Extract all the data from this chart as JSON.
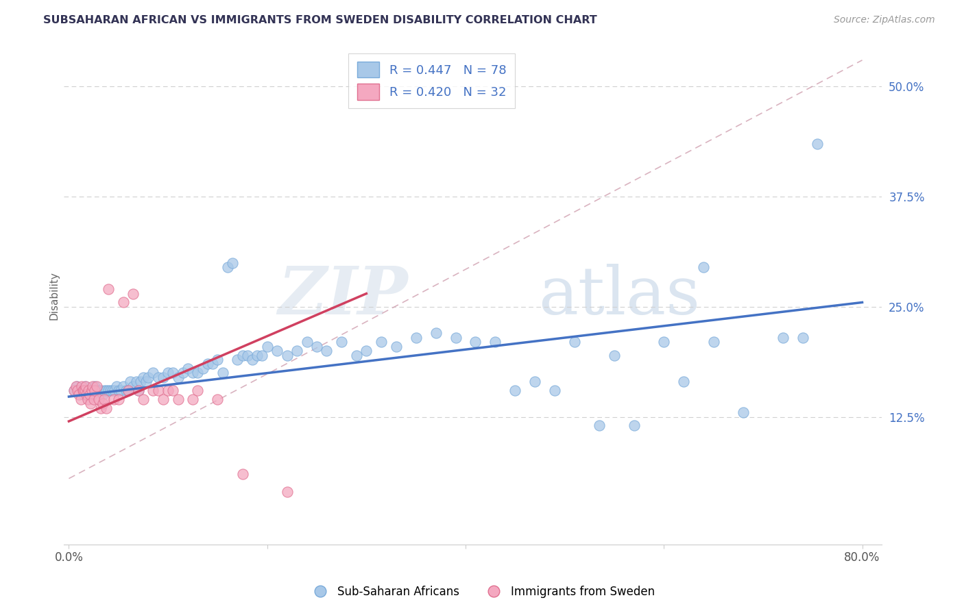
{
  "title": "SUBSAHARAN AFRICAN VS IMMIGRANTS FROM SWEDEN DISABILITY CORRELATION CHART",
  "source": "Source: ZipAtlas.com",
  "ylabel": "Disability",
  "xlim": [
    -0.005,
    0.82
  ],
  "ylim": [
    -0.02,
    0.545
  ],
  "xticks": [
    0.0,
    0.2,
    0.4,
    0.6,
    0.8
  ],
  "xticklabels": [
    "0.0%",
    "",
    "",
    "",
    "80.0%"
  ],
  "ytick_positions": [
    0.125,
    0.25,
    0.375,
    0.5
  ],
  "ytick_labels": [
    "12.5%",
    "25.0%",
    "37.5%",
    "50.0%"
  ],
  "blue_color": "#a8c8e8",
  "pink_color": "#f4a8c0",
  "trendline_blue_color": "#4472c4",
  "trendline_pink_color": "#d04060",
  "trendline_dashed_color": "#d0a0b0",
  "grid_color": "#d0d0d0",
  "blue_scatter": [
    [
      0.005,
      0.155
    ],
    [
      0.008,
      0.16
    ],
    [
      0.01,
      0.155
    ],
    [
      0.012,
      0.155
    ],
    [
      0.014,
      0.155
    ],
    [
      0.015,
      0.15
    ],
    [
      0.016,
      0.16
    ],
    [
      0.018,
      0.155
    ],
    [
      0.02,
      0.155
    ],
    [
      0.022,
      0.155
    ],
    [
      0.024,
      0.15
    ],
    [
      0.025,
      0.155
    ],
    [
      0.026,
      0.16
    ],
    [
      0.028,
      0.155
    ],
    [
      0.03,
      0.155
    ],
    [
      0.032,
      0.155
    ],
    [
      0.034,
      0.15
    ],
    [
      0.036,
      0.155
    ],
    [
      0.038,
      0.155
    ],
    [
      0.04,
      0.155
    ],
    [
      0.042,
      0.155
    ],
    [
      0.044,
      0.155
    ],
    [
      0.046,
      0.155
    ],
    [
      0.048,
      0.16
    ],
    [
      0.05,
      0.155
    ],
    [
      0.052,
      0.155
    ],
    [
      0.055,
      0.16
    ],
    [
      0.058,
      0.155
    ],
    [
      0.06,
      0.155
    ],
    [
      0.062,
      0.165
    ],
    [
      0.065,
      0.16
    ],
    [
      0.068,
      0.165
    ],
    [
      0.07,
      0.155
    ],
    [
      0.072,
      0.165
    ],
    [
      0.075,
      0.17
    ],
    [
      0.078,
      0.165
    ],
    [
      0.08,
      0.17
    ],
    [
      0.085,
      0.175
    ],
    [
      0.09,
      0.17
    ],
    [
      0.095,
      0.17
    ],
    [
      0.1,
      0.175
    ],
    [
      0.105,
      0.175
    ],
    [
      0.11,
      0.17
    ],
    [
      0.115,
      0.175
    ],
    [
      0.12,
      0.18
    ],
    [
      0.125,
      0.175
    ],
    [
      0.13,
      0.175
    ],
    [
      0.135,
      0.18
    ],
    [
      0.14,
      0.185
    ],
    [
      0.145,
      0.185
    ],
    [
      0.15,
      0.19
    ],
    [
      0.155,
      0.175
    ],
    [
      0.16,
      0.295
    ],
    [
      0.165,
      0.3
    ],
    [
      0.17,
      0.19
    ],
    [
      0.175,
      0.195
    ],
    [
      0.18,
      0.195
    ],
    [
      0.185,
      0.19
    ],
    [
      0.19,
      0.195
    ],
    [
      0.195,
      0.195
    ],
    [
      0.2,
      0.205
    ],
    [
      0.21,
      0.2
    ],
    [
      0.22,
      0.195
    ],
    [
      0.23,
      0.2
    ],
    [
      0.24,
      0.21
    ],
    [
      0.25,
      0.205
    ],
    [
      0.26,
      0.2
    ],
    [
      0.275,
      0.21
    ],
    [
      0.29,
      0.195
    ],
    [
      0.3,
      0.2
    ],
    [
      0.315,
      0.21
    ],
    [
      0.33,
      0.205
    ],
    [
      0.35,
      0.215
    ],
    [
      0.37,
      0.22
    ],
    [
      0.39,
      0.215
    ],
    [
      0.41,
      0.21
    ],
    [
      0.43,
      0.21
    ],
    [
      0.45,
      0.155
    ],
    [
      0.47,
      0.165
    ],
    [
      0.49,
      0.155
    ],
    [
      0.51,
      0.21
    ],
    [
      0.535,
      0.115
    ],
    [
      0.55,
      0.195
    ],
    [
      0.57,
      0.115
    ],
    [
      0.6,
      0.21
    ],
    [
      0.62,
      0.165
    ],
    [
      0.64,
      0.295
    ],
    [
      0.65,
      0.21
    ],
    [
      0.68,
      0.13
    ],
    [
      0.72,
      0.215
    ],
    [
      0.74,
      0.215
    ],
    [
      0.755,
      0.435
    ]
  ],
  "pink_scatter": [
    [
      0.005,
      0.155
    ],
    [
      0.007,
      0.16
    ],
    [
      0.009,
      0.155
    ],
    [
      0.01,
      0.15
    ],
    [
      0.012,
      0.145
    ],
    [
      0.013,
      0.16
    ],
    [
      0.014,
      0.155
    ],
    [
      0.015,
      0.155
    ],
    [
      0.016,
      0.155
    ],
    [
      0.017,
      0.16
    ],
    [
      0.018,
      0.15
    ],
    [
      0.019,
      0.145
    ],
    [
      0.02,
      0.155
    ],
    [
      0.021,
      0.15
    ],
    [
      0.022,
      0.14
    ],
    [
      0.023,
      0.155
    ],
    [
      0.024,
      0.16
    ],
    [
      0.025,
      0.145
    ],
    [
      0.026,
      0.155
    ],
    [
      0.028,
      0.16
    ],
    [
      0.03,
      0.145
    ],
    [
      0.032,
      0.135
    ],
    [
      0.034,
      0.14
    ],
    [
      0.036,
      0.145
    ],
    [
      0.038,
      0.135
    ],
    [
      0.04,
      0.27
    ],
    [
      0.045,
      0.145
    ],
    [
      0.05,
      0.145
    ],
    [
      0.055,
      0.255
    ],
    [
      0.06,
      0.155
    ],
    [
      0.065,
      0.265
    ],
    [
      0.07,
      0.155
    ],
    [
      0.075,
      0.145
    ],
    [
      0.085,
      0.155
    ],
    [
      0.09,
      0.155
    ],
    [
      0.095,
      0.145
    ],
    [
      0.1,
      0.155
    ],
    [
      0.105,
      0.155
    ],
    [
      0.11,
      0.145
    ],
    [
      0.125,
      0.145
    ],
    [
      0.13,
      0.155
    ],
    [
      0.15,
      0.145
    ],
    [
      0.175,
      0.06
    ],
    [
      0.22,
      0.04
    ]
  ],
  "trendline_blue": [
    [
      0.0,
      0.148
    ],
    [
      0.8,
      0.255
    ]
  ],
  "trendline_pink": [
    [
      0.0,
      0.12
    ],
    [
      0.3,
      0.265
    ]
  ],
  "trendline_dashed": [
    [
      0.0,
      0.055
    ],
    [
      0.8,
      0.53
    ]
  ]
}
